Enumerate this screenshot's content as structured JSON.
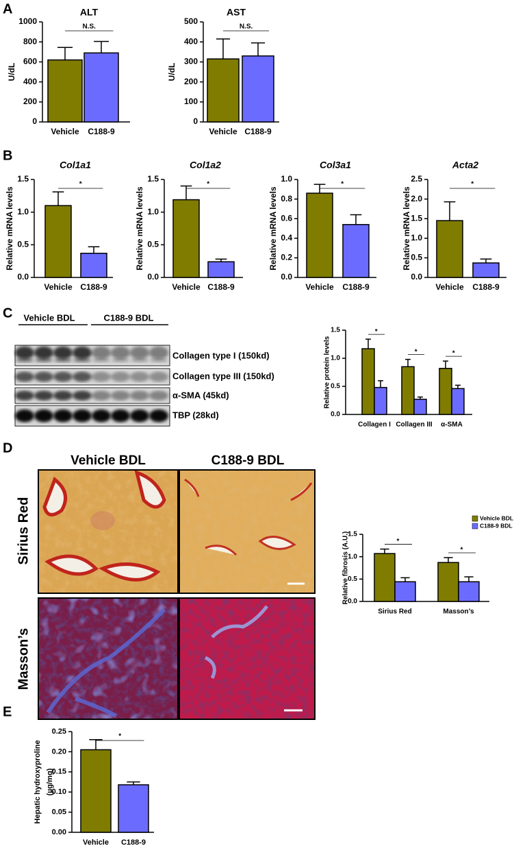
{
  "panel_labels": [
    "A",
    "B",
    "C",
    "D",
    "E"
  ],
  "chart_data": [
    {
      "type": "bar",
      "title": "ALT",
      "ylabel": "U/dL",
      "categories": [
        "Vehicle",
        "C188-9"
      ],
      "values": [
        620,
        690
      ],
      "errors": [
        125,
        115
      ],
      "colors": [
        "#7f7c00",
        "#6b6bff"
      ],
      "ylim": [
        0,
        1000
      ],
      "yticks": [
        0,
        200,
        400,
        600,
        800,
        1000
      ],
      "annotations": [
        "N.S."
      ]
    },
    {
      "type": "bar",
      "title": "AST",
      "ylabel": "U/dL",
      "categories": [
        "Vehicle",
        "C188-9"
      ],
      "values": [
        315,
        330
      ],
      "errors": [
        100,
        65
      ],
      "colors": [
        "#7f7c00",
        "#6b6bff"
      ],
      "ylim": [
        0,
        500
      ],
      "yticks": [
        0,
        100,
        200,
        300,
        400,
        500
      ],
      "annotations": [
        "N.S."
      ]
    },
    {
      "type": "bar",
      "title": "Col1a1",
      "title_italic": true,
      "ylabel": "Relative mRNA levels",
      "categories": [
        "Vehicle",
        "C188-9"
      ],
      "values": [
        1.1,
        0.37
      ],
      "errors": [
        0.21,
        0.1
      ],
      "colors": [
        "#7f7c00",
        "#6b6bff"
      ],
      "ylim": [
        0,
        1.5
      ],
      "yticks": [
        {
          "value": 0,
          "label": "0.0"
        },
        0.5,
        {
          "value": 1,
          "label": "1.0"
        },
        1.5
      ],
      "annotations": [
        "*"
      ]
    },
    {
      "type": "bar",
      "title": "Col1a2",
      "title_italic": true,
      "ylabel": "Relative mRNA levels",
      "categories": [
        "Vehicle",
        "C188-9"
      ],
      "values": [
        1.19,
        0.24
      ],
      "errors": [
        0.21,
        0.04
      ],
      "colors": [
        "#7f7c00",
        "#6b6bff"
      ],
      "ylim": [
        0,
        1.5
      ],
      "yticks": [
        {
          "value": 0,
          "label": "0.0"
        },
        0.5,
        {
          "value": 1,
          "label": "1.0"
        },
        1.5
      ],
      "annotations": [
        "*"
      ]
    },
    {
      "type": "bar",
      "title": "Col3a1",
      "title_italic": true,
      "ylabel": "Relative mRNA levels",
      "categories": [
        "Vehicle",
        "C188-9"
      ],
      "values": [
        0.86,
        0.54
      ],
      "errors": [
        0.09,
        0.1
      ],
      "colors": [
        "#7f7c00",
        "#6b6bff"
      ],
      "ylim": [
        0,
        1
      ],
      "yticks": [
        {
          "value": 0,
          "label": "0.0"
        },
        0.2,
        0.4,
        0.6,
        0.8,
        {
          "value": 1,
          "label": "1.0"
        }
      ],
      "annotations": [
        "*"
      ]
    },
    {
      "type": "bar",
      "title": "Acta2",
      "title_italic": true,
      "ylabel": "Relative mRNA levels",
      "categories": [
        "Vehicle",
        "C188-9"
      ],
      "values": [
        1.45,
        0.37
      ],
      "errors": [
        0.48,
        0.1
      ],
      "colors": [
        "#7f7c00",
        "#6b6bff"
      ],
      "ylim": [
        0,
        2.5
      ],
      "yticks": [
        {
          "value": 0,
          "label": "0.0"
        },
        0.5,
        {
          "value": 1,
          "label": "1.0"
        },
        1.5,
        {
          "value": 2,
          "label": "2.0"
        },
        2.5
      ],
      "annotations": [
        "*"
      ]
    },
    {
      "type": "bar",
      "ylabel": "Relative protein levels",
      "categories": [
        "Collagen I",
        "Collagen III",
        "α-SMA"
      ],
      "series": [
        {
          "color": "#7f7c00",
          "values": [
            1.17,
            0.85,
            0.82
          ],
          "errors": [
            0.17,
            0.13,
            0.13
          ]
        },
        {
          "color": "#6b6bff",
          "values": [
            0.48,
            0.27,
            0.46
          ],
          "errors": [
            0.12,
            0.04,
            0.06
          ]
        }
      ],
      "ylim": [
        0,
        1.5
      ],
      "yticks": [
        {
          "value": 0,
          "label": "0.0"
        },
        0.5,
        {
          "value": 1,
          "label": "1.0"
        },
        1.5
      ],
      "annotations": [
        "*",
        "*",
        "*"
      ]
    },
    {
      "type": "bar",
      "ylabel": "Relative fibrosis (A.U.)",
      "categories": [
        "Sirius Red",
        "Masson’s"
      ],
      "series": [
        {
          "name": "Vehicle BDL",
          "color": "#7f7c00",
          "values": [
            1.07,
            0.87
          ],
          "errors": [
            0.1,
            0.11
          ]
        },
        {
          "name": "C188-9 BDL",
          "color": "#6b6bff",
          "values": [
            0.44,
            0.44
          ],
          "errors": [
            0.09,
            0.11
          ]
        }
      ],
      "ylim": [
        0,
        1.5
      ],
      "yticks": [
        {
          "value": 0,
          "label": "0.0"
        },
        0.5,
        {
          "value": 1,
          "label": "1.0"
        },
        1.5
      ],
      "legend": "upper right",
      "annotations": [
        "*",
        "*"
      ]
    },
    {
      "type": "bar",
      "ylabel": [
        "Hepatic hydroxyproline",
        "(µg/mg)"
      ],
      "categories": [
        "Vehicle",
        "C188-9"
      ],
      "values": [
        0.205,
        0.118
      ],
      "errors": [
        0.025,
        0.007
      ],
      "colors": [
        "#7f7c00",
        "#6b6bff"
      ],
      "ylim": [
        0,
        0.25
      ],
      "yticks": [
        {
          "value": 0,
          "label": "0.00"
        },
        0.05,
        {
          "value": 0.1,
          "label": "0.10"
        },
        0.15,
        {
          "value": 0.2,
          "label": "0.20"
        },
        0.25
      ],
      "annotations": [
        "*"
      ]
    }
  ],
  "western_blot": {
    "groups": [
      "Vehicle BDL",
      "C188-9 BDL"
    ],
    "bands": [
      "Collagen type I (150kd)",
      "Collagen type III (150kd)",
      "α-SMA (45kd)",
      "TBP (28kd)"
    ]
  },
  "histology": {
    "columns": [
      "Vehicle BDL",
      "C188-9 BDL"
    ],
    "rows": [
      "Sirius Red",
      "Masson’s"
    ]
  }
}
